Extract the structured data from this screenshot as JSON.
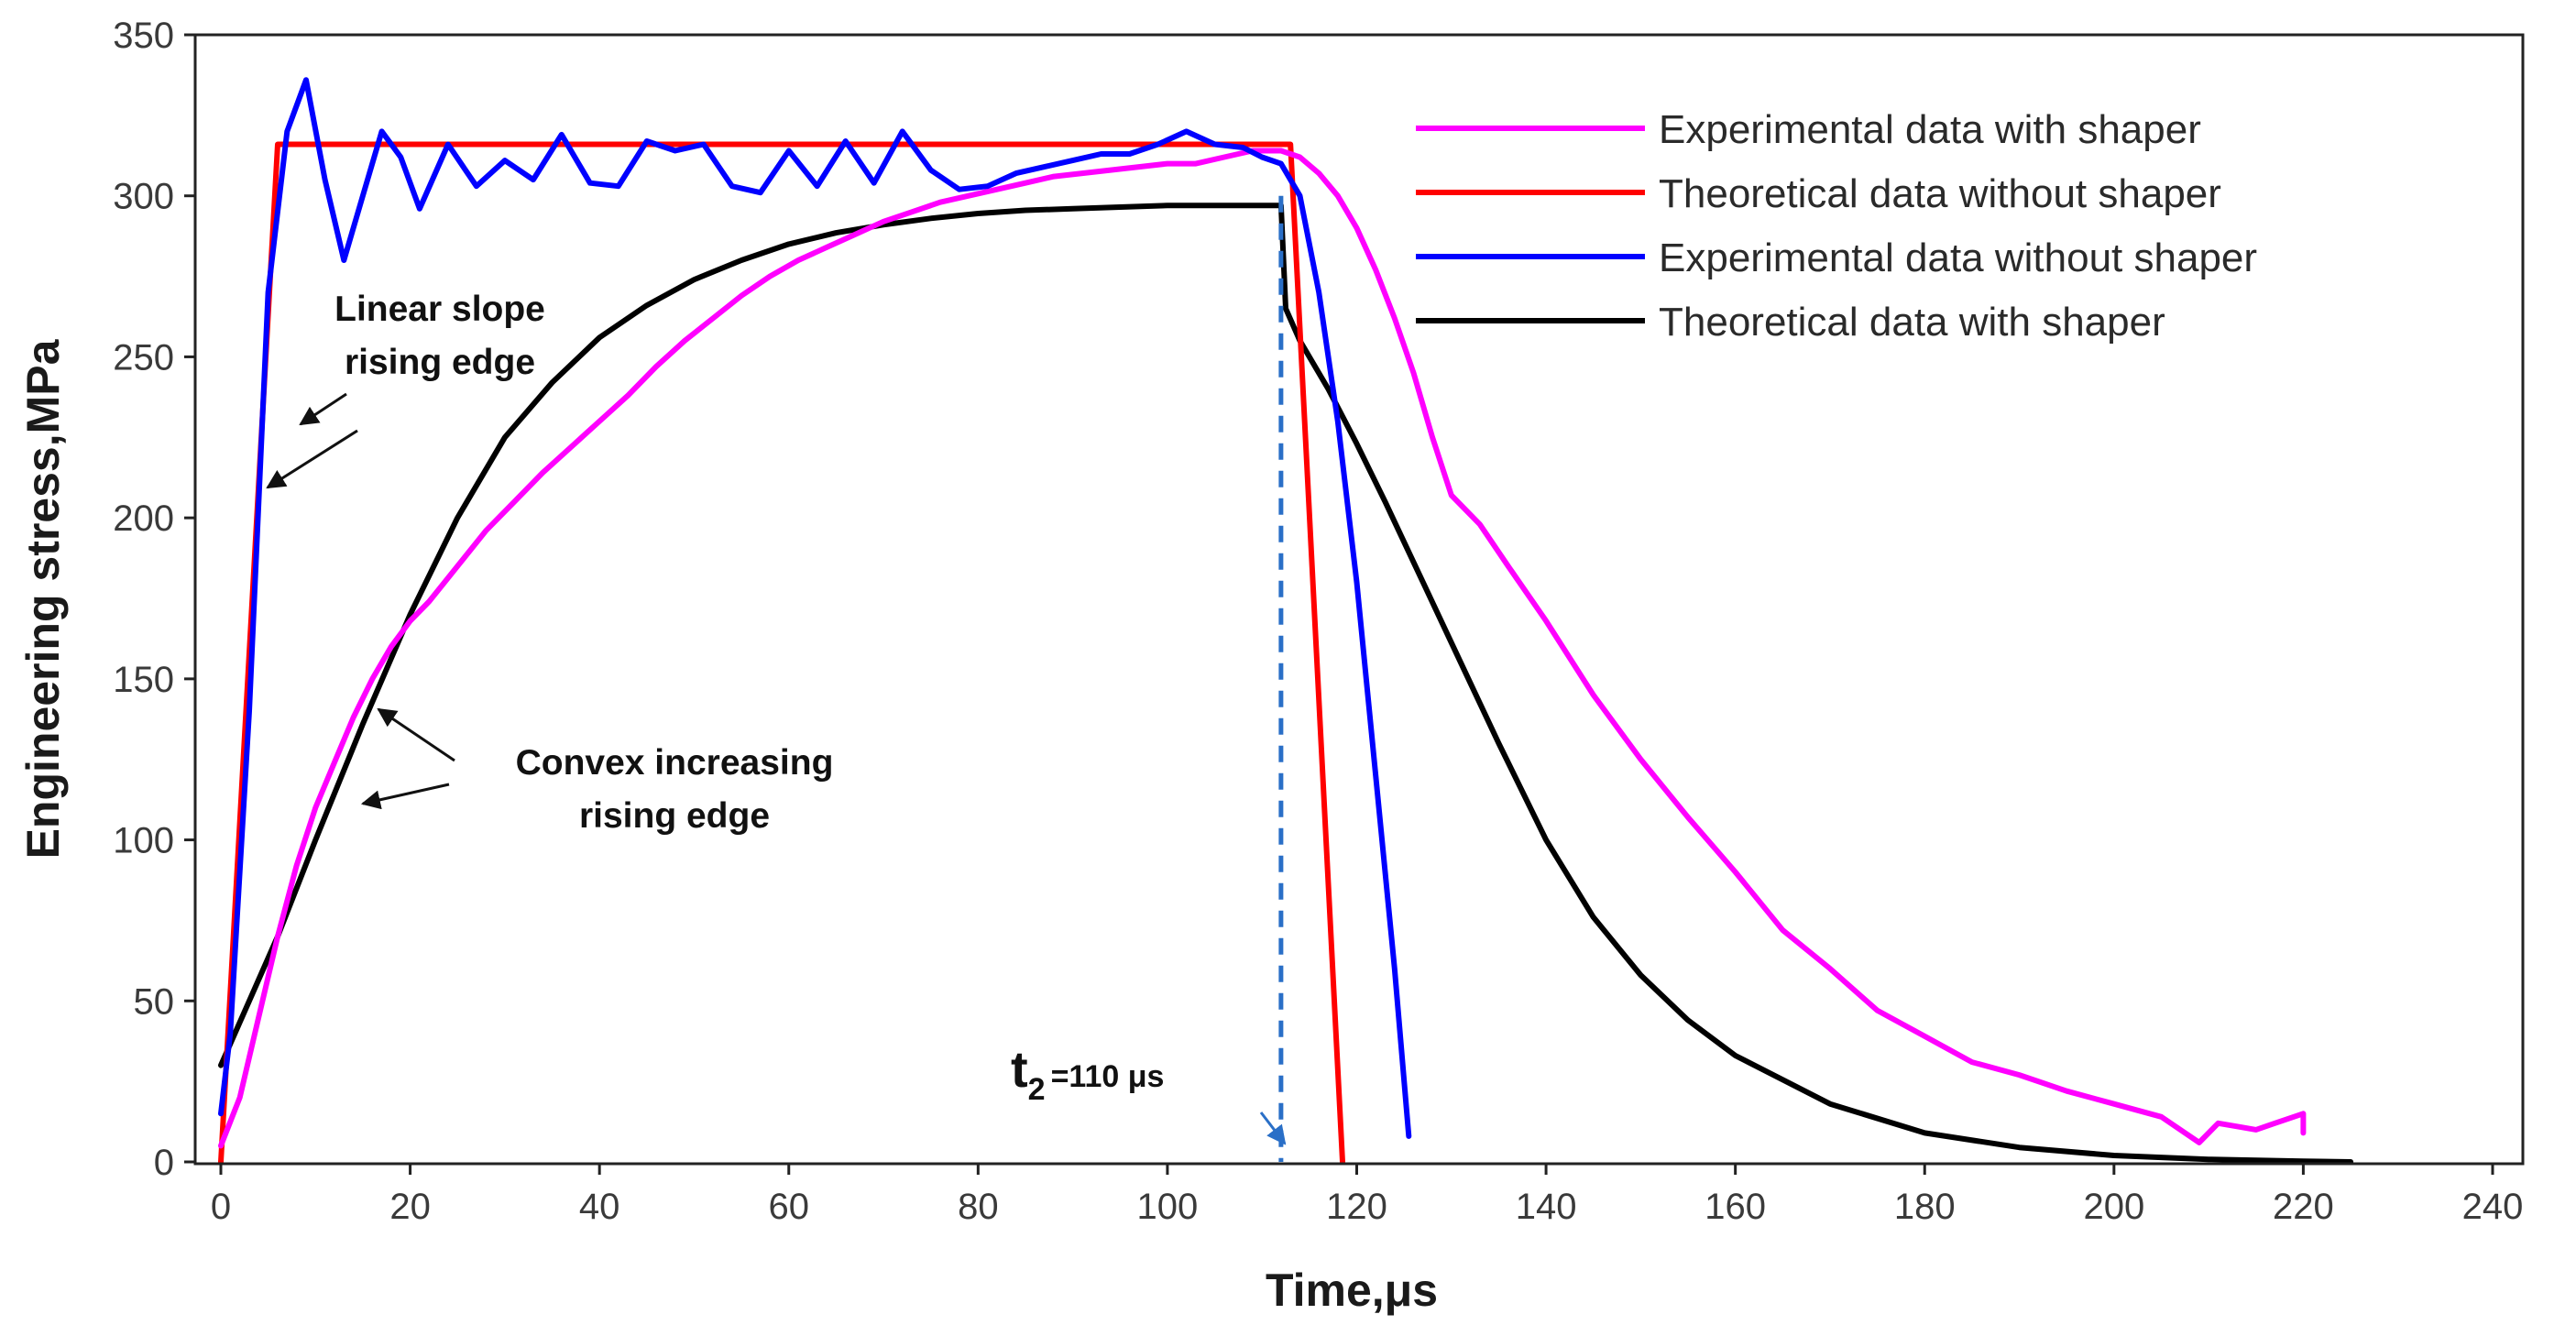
{
  "chart_data": {
    "type": "line",
    "title": "",
    "xlabel": "Time,μs",
    "ylabel": "Engineering stress,MPa",
    "xlim": [
      0,
      240
    ],
    "ylim": [
      0,
      350
    ],
    "xticks": [
      0,
      20,
      40,
      60,
      80,
      100,
      120,
      140,
      160,
      180,
      200,
      220,
      240
    ],
    "yticks": [
      0,
      50,
      100,
      150,
      200,
      250,
      300,
      350
    ],
    "grid": false,
    "legend_position": "top-right",
    "series": [
      {
        "name": "Experimental data with shaper",
        "color": "#ff00ff",
        "x": [
          0,
          2,
          4,
          6,
          8,
          10,
          12,
          14,
          16,
          18,
          20,
          22,
          25,
          28,
          31,
          34,
          37,
          40,
          43,
          46,
          49,
          52,
          55,
          58,
          61,
          64,
          67,
          70,
          73,
          76,
          79,
          82,
          85,
          88,
          91,
          94,
          97,
          100,
          103,
          106,
          109,
          112,
          114,
          116,
          118,
          120,
          122,
          124,
          126,
          128,
          130,
          133,
          136,
          140,
          145,
          150,
          155,
          160,
          165,
          170,
          175,
          180,
          185,
          190,
          195,
          200,
          205,
          209,
          211,
          213,
          215,
          217,
          219,
          220,
          220
        ],
        "y": [
          5,
          20,
          45,
          70,
          92,
          110,
          124,
          138,
          150,
          160,
          168,
          174,
          185,
          196,
          205,
          214,
          222,
          230,
          238,
          247,
          255,
          262,
          269,
          275,
          280,
          284,
          288,
          292,
          295,
          298,
          300,
          302,
          304,
          306,
          307,
          308,
          309,
          310,
          310,
          312,
          314,
          314,
          312,
          307,
          300,
          290,
          277,
          262,
          245,
          225,
          207,
          198,
          185,
          168,
          145,
          125,
          107,
          90,
          72,
          60,
          47,
          39,
          31,
          27,
          22,
          18,
          14,
          6,
          12,
          11,
          10,
          12,
          14,
          15,
          9
        ]
      },
      {
        "name": "Theoretical data without shaper",
        "color": "#ff0000",
        "x": [
          0,
          6,
          113,
          118.5
        ],
        "y": [
          0,
          316,
          316,
          0
        ]
      },
      {
        "name": "Experimental data without shaper",
        "color": "#0000ff",
        "x": [
          0,
          1,
          3,
          5,
          7,
          9,
          11,
          13,
          15,
          17,
          19,
          21,
          24,
          27,
          30,
          33,
          36,
          39,
          42,
          45,
          48,
          51,
          54,
          57,
          60,
          63,
          66,
          69,
          72,
          75,
          78,
          81,
          84,
          87,
          90,
          93,
          96,
          99,
          102,
          105,
          108,
          110,
          112,
          114,
          116,
          118,
          120,
          122,
          124,
          125.5
        ],
        "y": [
          15,
          40,
          140,
          270,
          320,
          336,
          305,
          280,
          300,
          320,
          312,
          296,
          316,
          303,
          311,
          305,
          319,
          304,
          303,
          317,
          314,
          316,
          303,
          301,
          314,
          303,
          317,
          304,
          320,
          308,
          302,
          303,
          307,
          309,
          311,
          313,
          313,
          316,
          320,
          316,
          315,
          312,
          310,
          300,
          270,
          230,
          180,
          120,
          60,
          8
        ]
      },
      {
        "name": "Theoretical data with shaper",
        "color": "#000000",
        "x": [
          0,
          3,
          6,
          10,
          15,
          20,
          25,
          30,
          35,
          40,
          45,
          50,
          55,
          60,
          65,
          70,
          75,
          80,
          85,
          90,
          95,
          100,
          105,
          110,
          112,
          112.5,
          114,
          117,
          120,
          123,
          127,
          131,
          135,
          140,
          145,
          150,
          155,
          160,
          170,
          180,
          190,
          200,
          210,
          220,
          225
        ],
        "y": [
          30,
          50,
          70,
          100,
          136,
          170,
          200,
          225,
          242,
          256,
          266,
          274,
          280,
          285,
          288.5,
          291,
          293,
          294.5,
          295.5,
          296,
          296.5,
          297,
          297,
          297,
          297,
          265,
          255,
          240,
          223,
          205,
          180,
          155,
          130,
          100,
          76,
          58,
          44,
          33,
          18,
          9,
          4.5,
          2,
          0.8,
          0.2,
          0
        ]
      }
    ],
    "vertical_marker": {
      "x": 112,
      "y_top": 300,
      "color": "#2a6fc7",
      "style": "dashed"
    },
    "annotations": [
      {
        "lines": [
          "Linear slope",
          "rising edge"
        ]
      },
      {
        "lines": [
          "Convex increasing",
          "rising edge"
        ]
      },
      {
        "main": "t",
        "sub": "2",
        "rest": "=110 μs"
      }
    ]
  }
}
